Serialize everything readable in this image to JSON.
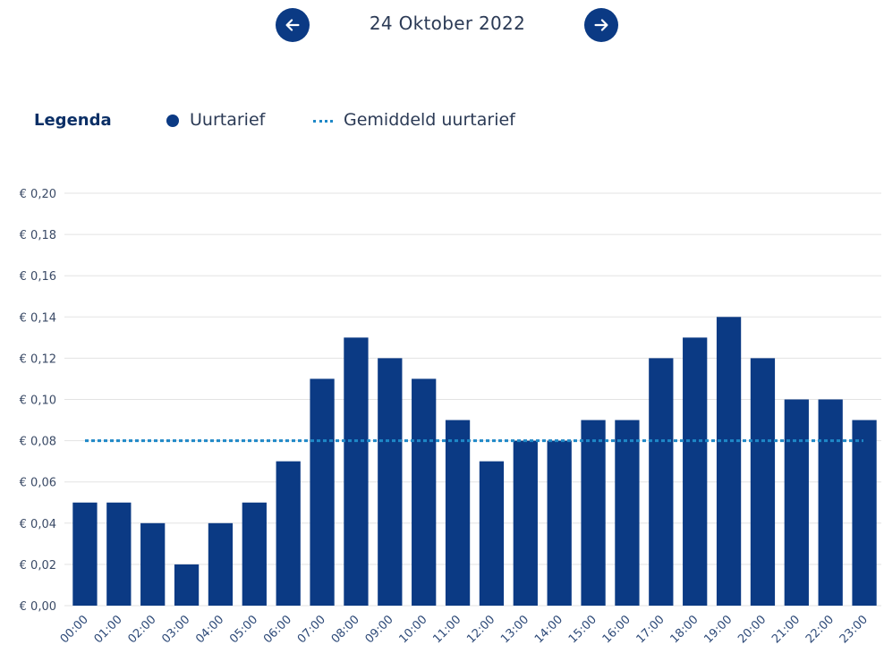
{
  "navigation": {
    "date": "24 Oktober 2022",
    "prev_icon": "arrow-left-icon",
    "next_icon": "arrow-right-icon"
  },
  "legend": {
    "title": "Legenda",
    "items": [
      "Uurtarief",
      "Gemiddeld uurtarief"
    ]
  },
  "colors": {
    "bar": "#0b3a84",
    "average_line": "#1e88c7",
    "grid": "#e3e3e3"
  },
  "chart_data": {
    "type": "bar",
    "categories": [
      "00:00",
      "01:00",
      "02:00",
      "03:00",
      "04:00",
      "05:00",
      "06:00",
      "07:00",
      "08:00",
      "09:00",
      "10:00",
      "11:00",
      "12:00",
      "13:00",
      "14:00",
      "15:00",
      "16:00",
      "17:00",
      "18:00",
      "19:00",
      "20:00",
      "21:00",
      "22:00",
      "23:00"
    ],
    "series": [
      {
        "name": "Uurtarief",
        "values": [
          0.05,
          0.05,
          0.04,
          0.02,
          0.04,
          0.05,
          0.07,
          0.11,
          0.13,
          0.12,
          0.11,
          0.09,
          0.07,
          0.08,
          0.08,
          0.09,
          0.09,
          0.12,
          0.13,
          0.14,
          0.12,
          0.1,
          0.1,
          0.09
        ]
      }
    ],
    "average": {
      "name": "Gemiddeld uurtarief",
      "value": 0.08
    },
    "ylim": [
      0,
      0.2
    ],
    "yticks": [
      "€ 0,00",
      "€ 0,02",
      "€ 0,04",
      "€ 0,06",
      "€ 0,08",
      "€ 0,10",
      "€ 0,12",
      "€ 0,14",
      "€ 0,16",
      "€ 0,18",
      "€ 0,20"
    ],
    "grid": true,
    "legend_position": "top-left"
  }
}
